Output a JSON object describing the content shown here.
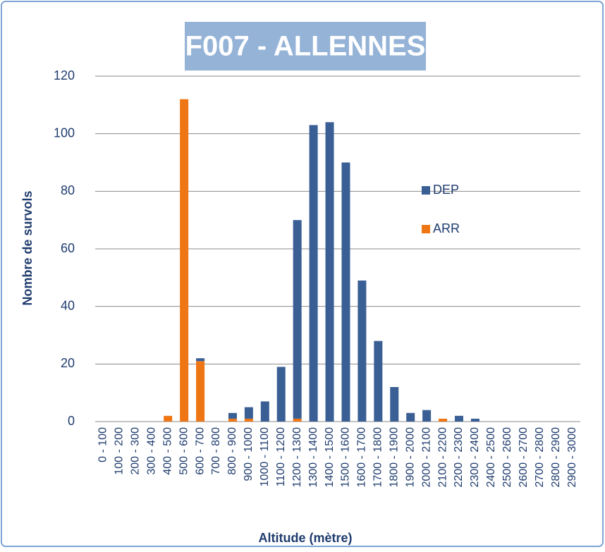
{
  "chart_data": {
    "type": "bar",
    "stacked": true,
    "title": "F007 - ALLENNES",
    "x_label": "Altitude (mètre)",
    "y_label": "Nombre de survols",
    "categories": [
      "0 - 100",
      "100 - 200",
      "200 - 300",
      "300 - 400",
      "400 - 500",
      "500 - 600",
      "600 - 700",
      "700 - 800",
      "800 - 900",
      "900 - 1000",
      "1000 - 1100",
      "1100 - 1200",
      "1200 - 1300",
      "1300 - 1400",
      "1400 - 1500",
      "1500 - 1600",
      "1600 - 1700",
      "1700 - 1800",
      "1800 - 1900",
      "1900 - 2000",
      "2000 - 2100",
      "2100 - 2200",
      "2200 - 2300",
      "2300 - 2400",
      "2400 - 2500",
      "2500 - 2600",
      "2600 - 2700",
      "2700 - 2800",
      "2800 - 2900",
      "2900 - 3000"
    ],
    "series": [
      {
        "name": "DEP",
        "color": "#3a5f95",
        "values": [
          0,
          0,
          0,
          0,
          0,
          0,
          1,
          0,
          2,
          4,
          7,
          19,
          69,
          103,
          104,
          90,
          49,
          28,
          12,
          3,
          4,
          0,
          2,
          1,
          0,
          0,
          0,
          0,
          0,
          0
        ]
      },
      {
        "name": "ARR",
        "color": "#ee7615",
        "values": [
          0,
          0,
          0,
          0,
          2,
          112,
          21,
          0,
          1,
          1,
          0,
          0,
          1,
          0,
          0,
          0,
          0,
          0,
          0,
          0,
          0,
          1,
          0,
          0,
          0,
          0,
          0,
          0,
          0,
          0
        ]
      }
    ],
    "ylim": [
      0,
      120
    ],
    "yticks": [
      0,
      20,
      40,
      60,
      80,
      100,
      120
    ],
    "grid": true,
    "legend": "right"
  }
}
